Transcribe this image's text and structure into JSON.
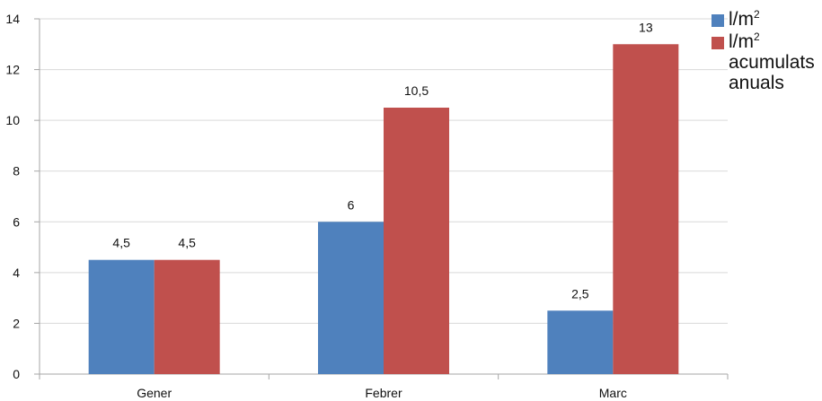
{
  "chart_data": {
    "type": "bar",
    "categories": [
      "Gener",
      "Febrer",
      "Marc"
    ],
    "series": [
      {
        "name": "l/m2",
        "legend_text": "l/m",
        "legend_sup": "2",
        "color": "#4f81bd",
        "values": [
          4.5,
          6,
          2.5
        ],
        "labels": [
          "4,5",
          "6",
          "2,5"
        ]
      },
      {
        "name": "l/m2 acumulats anuals",
        "legend_text": "l/m",
        "legend_sup": "2",
        "legend_extra": "acumulats anuals",
        "color": "#c0504d",
        "values": [
          4.5,
          10.5,
          13
        ],
        "labels": [
          "4,5",
          "10,5",
          "13"
        ]
      }
    ],
    "yticks": [
      0,
      2,
      4,
      6,
      8,
      10,
      12,
      14
    ],
    "ylim": [
      0,
      14
    ],
    "grid": true,
    "legend_position": "top-right"
  }
}
